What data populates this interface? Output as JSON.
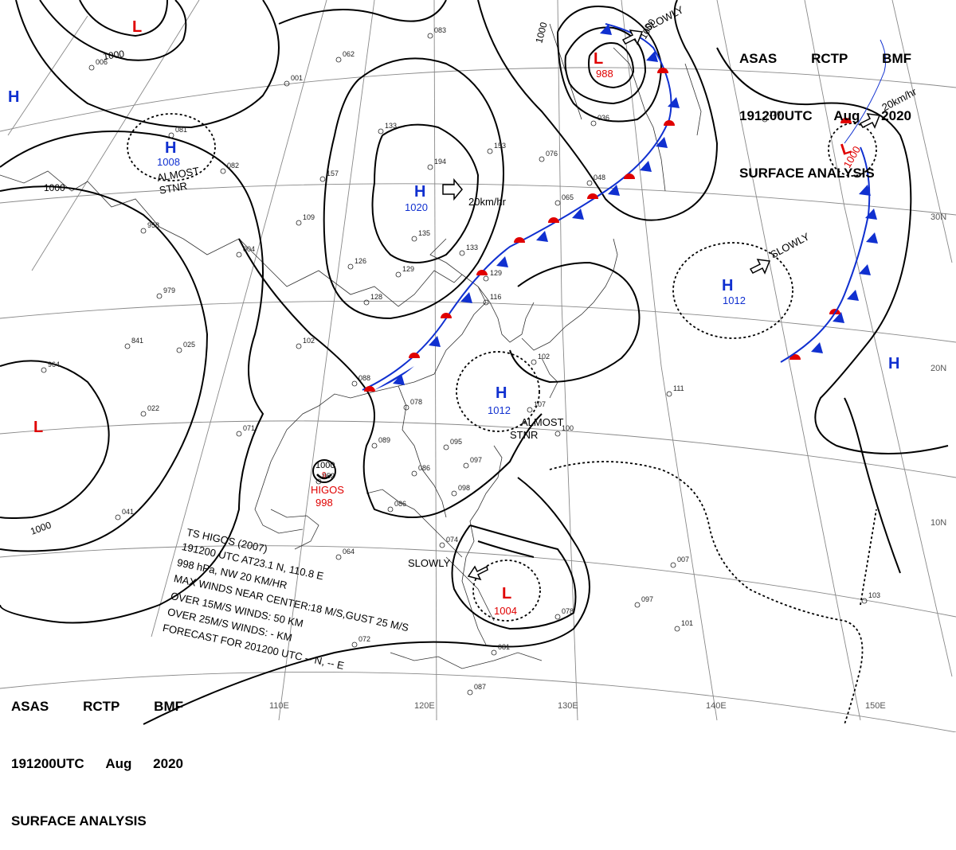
{
  "title_block_top_right": {
    "line1": [
      "ASAS",
      "RCTP",
      "BMF"
    ],
    "line2": [
      "191200UTC",
      "Aug",
      "2020"
    ],
    "line3": "SURFACE ANALYSIS"
  },
  "title_block_bottom_left": {
    "line1": [
      "ASAS",
      "RCTP",
      "BMF"
    ],
    "line2": [
      "191200UTC",
      "Aug",
      "2020"
    ],
    "line3": "SURFACE ANALYSIS"
  },
  "longitude_labels": [
    "110E",
    "120E",
    "130E",
    "140E",
    "150E"
  ],
  "latitude_labels": [
    "30N",
    "20N",
    "10N"
  ],
  "pressure_centers": [
    {
      "type": "H",
      "value": "1020",
      "motion": "20km/hr",
      "color": "#1030d0"
    },
    {
      "type": "H",
      "value": "1008",
      "motion": "ALMOST STNR",
      "color": "#1030d0"
    },
    {
      "type": "H",
      "value": "1012",
      "motion": "ALMOST STNR",
      "color": "#1030d0"
    },
    {
      "type": "H",
      "value": "1012",
      "motion": "SLOWLY",
      "color": "#1030d0"
    },
    {
      "type": "H",
      "value": "",
      "color": "#1030d0"
    },
    {
      "type": "H",
      "value": "",
      "color": "#1030d0"
    },
    {
      "type": "L",
      "value": "988",
      "motion": "SLOWLY",
      "color": "#e00000"
    },
    {
      "type": "L",
      "value": "1000",
      "motion": "20km/hr",
      "color": "#e00000"
    },
    {
      "type": "L",
      "value": "1004",
      "motion": "SLOWLY",
      "color": "#e00000"
    },
    {
      "type": "L",
      "value": "",
      "color": "#e00000"
    },
    {
      "type": "L",
      "value": "",
      "color": "#e00000"
    }
  ],
  "isobar_labels": [
    "1000",
    "1000",
    "1000",
    "1000",
    "1000"
  ],
  "storm": {
    "name": "HIGOS",
    "pressure": "998",
    "center_isobar": "1000",
    "center_marker": "9",
    "color": "#e00000"
  },
  "storm_info": {
    "line1": "TS  HIGOS  (2007)",
    "line2": "191200 UTC  AT23.1 N, 110.8 E",
    "line3": "998 hPa, NW  20 KM/HR",
    "line4": "MAX WINDS NEAR CENTER:18 M/S,GUST 25 M/S",
    "line5": "OVER 15M/S WINDS: 50 KM",
    "line6": "OVER 25M/S WINDS: - KM",
    "line7": "FORECAST FOR 201200 UTC -- N, -- E"
  },
  "station_numbers": [
    "083",
    "062",
    "001",
    "006",
    "081",
    "082",
    "157",
    "133",
    "194",
    "153",
    "109",
    "958",
    "979",
    "004",
    "126",
    "128",
    "129",
    "135",
    "133",
    "065",
    "048",
    "036",
    "076",
    "129",
    "116",
    "102",
    "025",
    "102",
    "841",
    "964",
    "022",
    "071",
    "052",
    "088",
    "078",
    "089",
    "095",
    "086",
    "097",
    "098",
    "086",
    "107",
    "100",
    "111",
    "041",
    "064",
    "074",
    "072",
    "081",
    "087",
    "078",
    "097",
    "101",
    "103",
    "007",
    "120"
  ],
  "colors": {
    "front_cold": "#1030d0",
    "front_warm": "#e00000",
    "isobar": "#000000",
    "grid": "#777777",
    "coast": "#333333"
  }
}
